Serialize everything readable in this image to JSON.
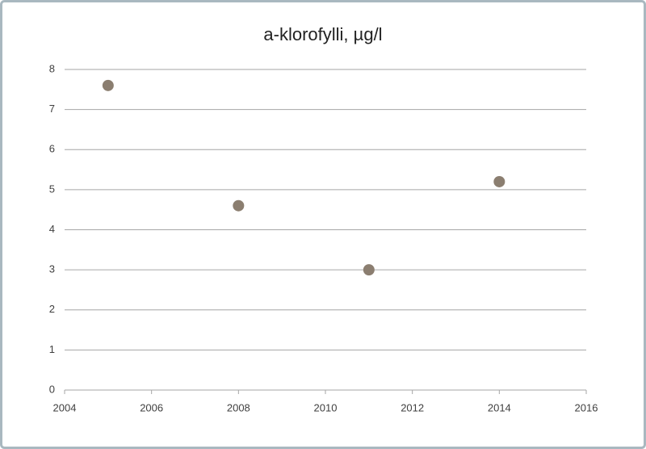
{
  "chart_data": {
    "type": "scatter",
    "title": "a-klorofylli, µg/l",
    "series": [
      {
        "color": "#8b7e70",
        "x": [
          2005,
          2008,
          2011,
          2014
        ],
        "values": [
          7.6,
          4.6,
          3,
          5.2
        ]
      }
    ],
    "xlim": [
      2004,
      2016
    ],
    "xticks": [
      2004,
      2006,
      2008,
      2010,
      2012,
      2014,
      2016
    ],
    "ylim": [
      0,
      8
    ],
    "yticks": [
      0,
      1,
      2,
      3,
      4,
      5,
      6,
      7,
      8
    ],
    "grid": true
  }
}
